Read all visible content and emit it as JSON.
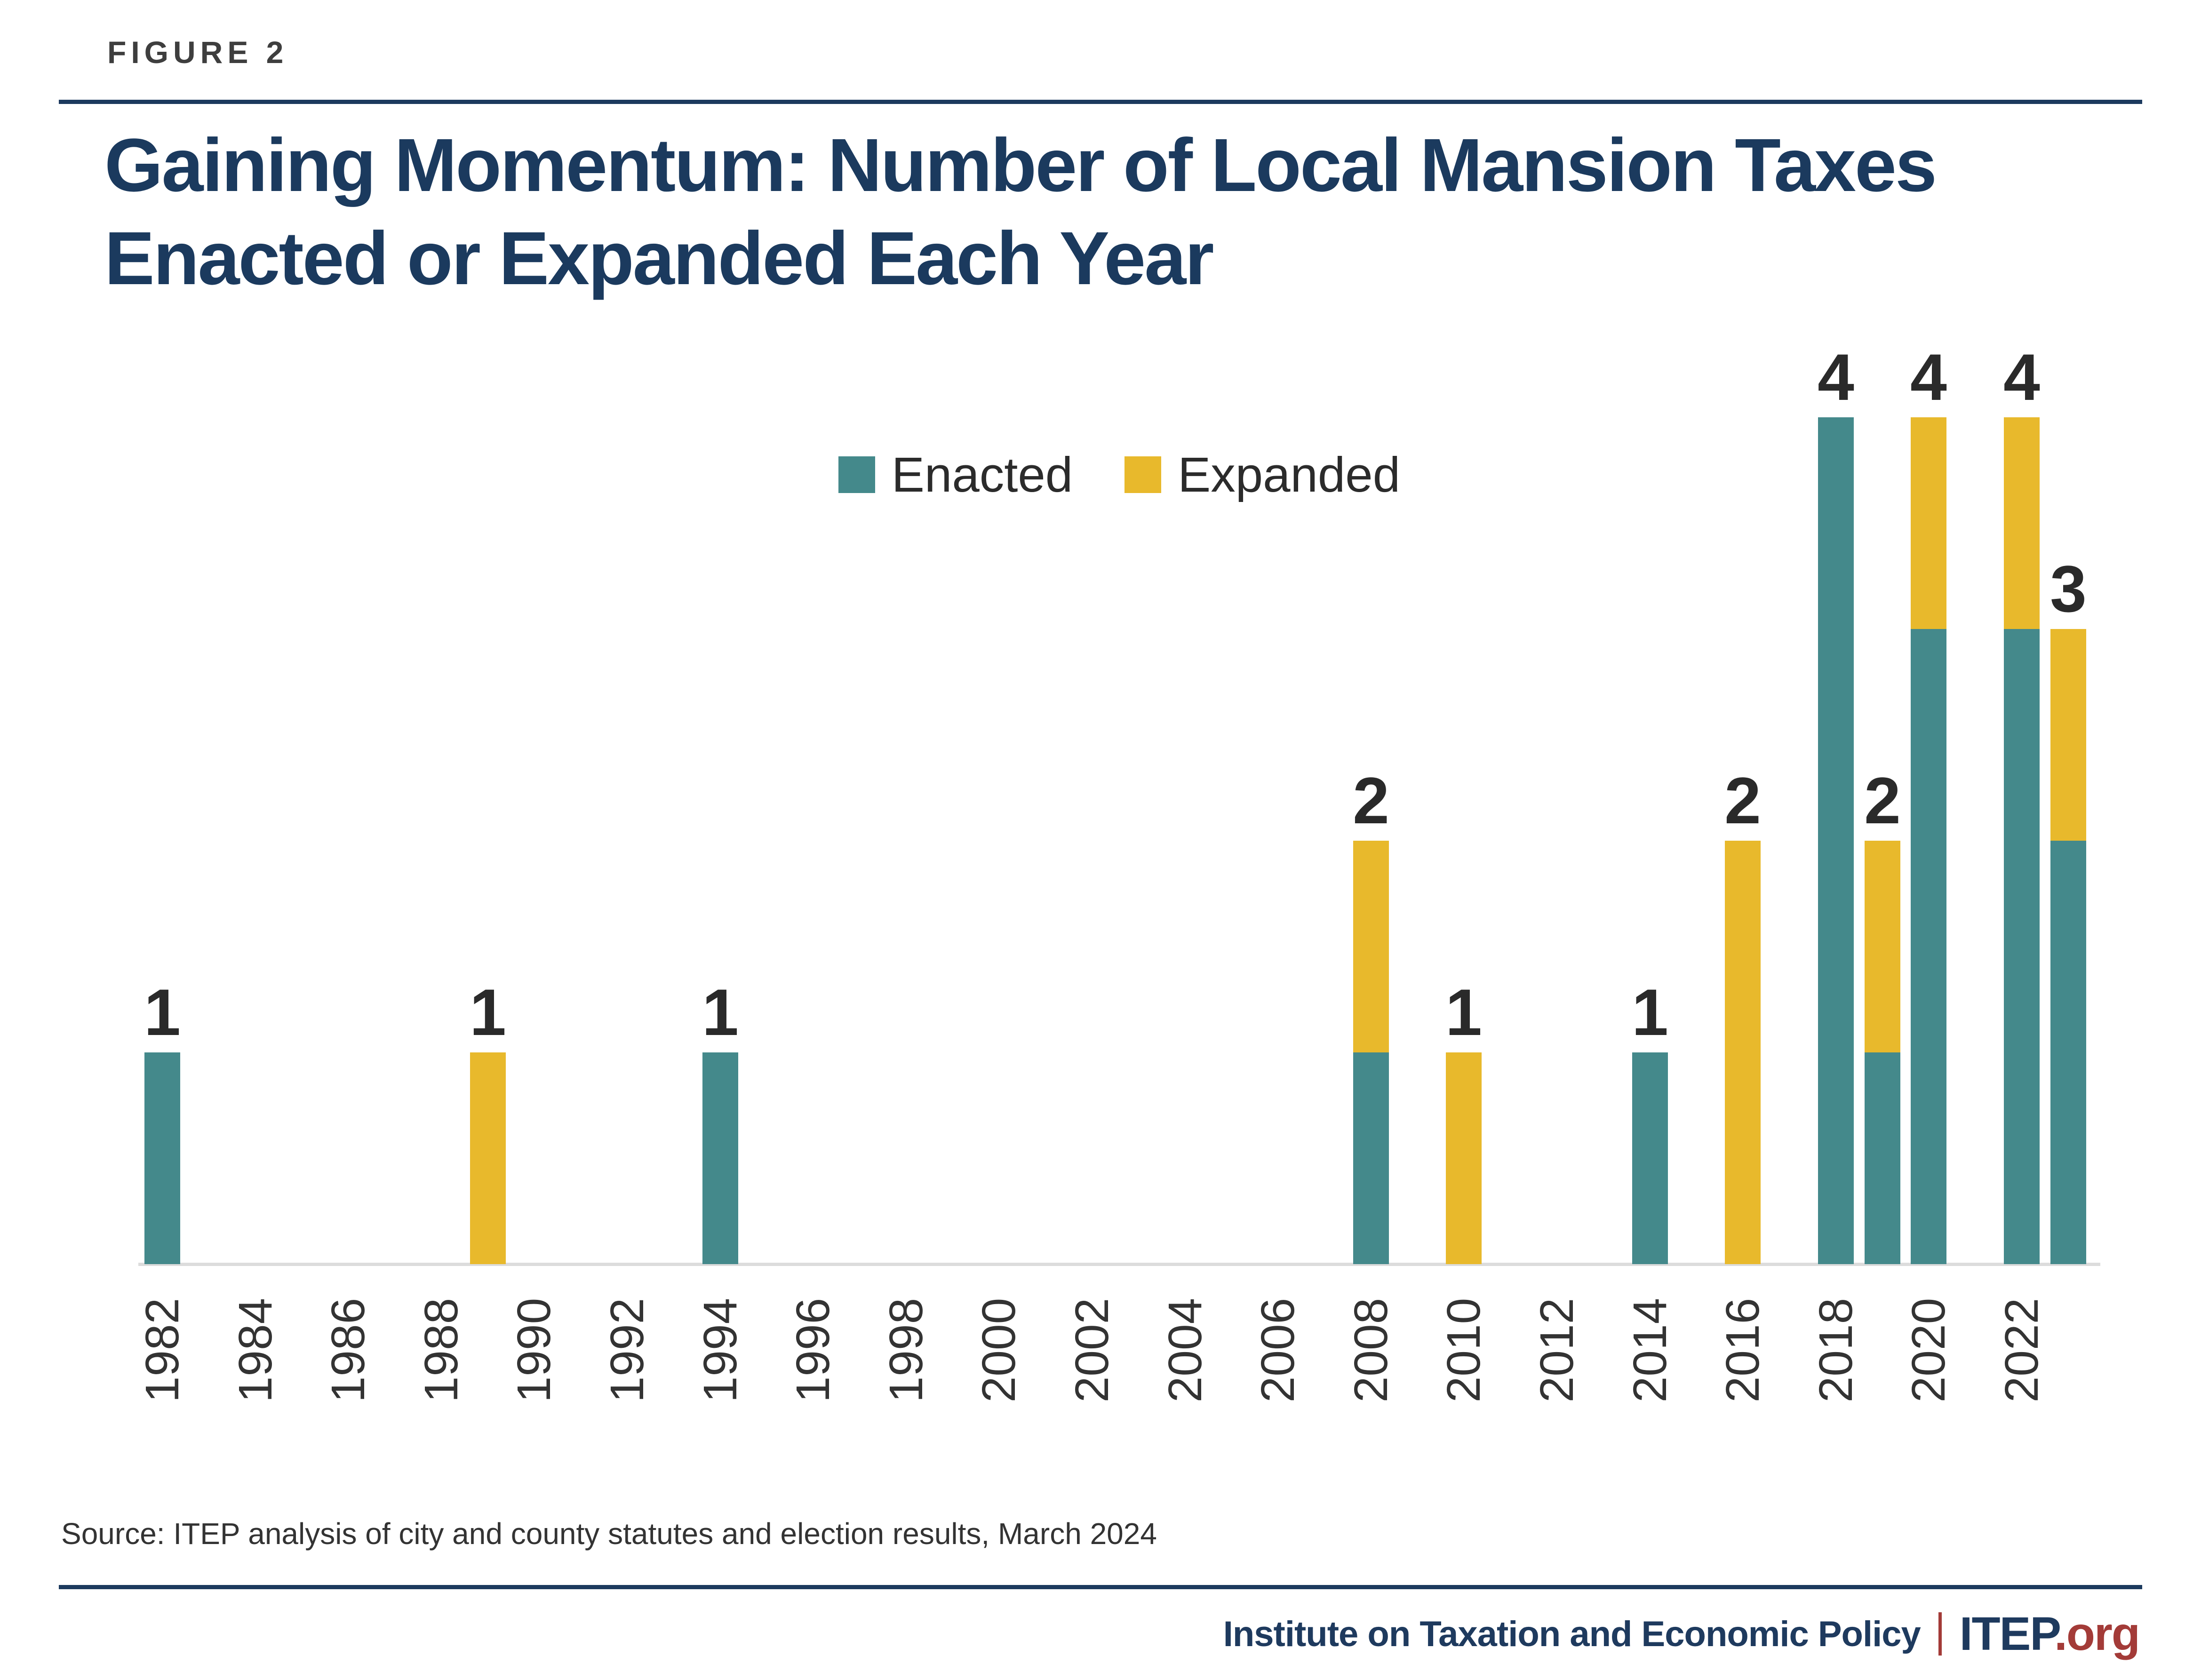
{
  "figure_label": "FIGURE 2",
  "title": {
    "line1": "Gaining Momentum: Number of Local Mansion Taxes",
    "line2": "Enacted or Expanded Each Year",
    "full": "Gaining Momentum: Number of Local Mansion Taxes Enacted or Expanded Each Year"
  },
  "legend": {
    "items": [
      {
        "label": "Enacted",
        "color": "#44898B"
      },
      {
        "label": "Expanded",
        "color": "#E8B92C"
      }
    ]
  },
  "source_note": "Source: ITEP analysis of city and county statutes and election results, March 2024",
  "footer": {
    "org_name": "Institute on Taxation and Economic Policy",
    "brand": "ITEP",
    "brand_suffix": ".org"
  },
  "colors": {
    "enacted": "#44898B",
    "expanded": "#E8B92C",
    "navy": "#1B3A5E",
    "red": "#A33B38",
    "baseline": "#DCDCDC",
    "figure_label_gray": "#3E3E3E",
    "text_dark": "#2B2B2B"
  },
  "chart_data": {
    "type": "bar",
    "stacked": true,
    "title": "Gaining Momentum: Number of Local Mansion Taxes Enacted or Expanded Each Year",
    "xlabel": "",
    "ylabel": "",
    "ylim": [
      0,
      4.5
    ],
    "x_domain": [
      1982,
      2023
    ],
    "grid": false,
    "legend_position": "top-center",
    "value_labels_shown": true,
    "x_tick_labels": [
      "1982",
      "1984",
      "1986",
      "1988",
      "1990",
      "1992",
      "1994",
      "1996",
      "1998",
      "2000",
      "2002",
      "2004",
      "2006",
      "2008",
      "2010",
      "2012",
      "2014",
      "2016",
      "2018",
      "2020",
      "2022"
    ],
    "series_names": [
      "Enacted",
      "Expanded"
    ],
    "bars": [
      {
        "year": 1982,
        "enacted": 1,
        "expanded": 0,
        "total": 1
      },
      {
        "year": 1989,
        "enacted": 0,
        "expanded": 1,
        "total": 1
      },
      {
        "year": 1994,
        "enacted": 1,
        "expanded": 0,
        "total": 1
      },
      {
        "year": 2008,
        "enacted": 1,
        "expanded": 1,
        "total": 2
      },
      {
        "year": 2010,
        "enacted": 0,
        "expanded": 1,
        "total": 1
      },
      {
        "year": 2014,
        "enacted": 1,
        "expanded": 0,
        "total": 1
      },
      {
        "year": 2016,
        "enacted": 0,
        "expanded": 2,
        "total": 2
      },
      {
        "year": 2018,
        "enacted": 4,
        "expanded": 0,
        "total": 4
      },
      {
        "year": 2019,
        "enacted": 1,
        "expanded": 1,
        "total": 2
      },
      {
        "year": 2020,
        "enacted": 3,
        "expanded": 1,
        "total": 4
      },
      {
        "year": 2022,
        "enacted": 3,
        "expanded": 1,
        "total": 4
      },
      {
        "year": 2023,
        "enacted": 2,
        "expanded": 1,
        "total": 3
      }
    ]
  }
}
